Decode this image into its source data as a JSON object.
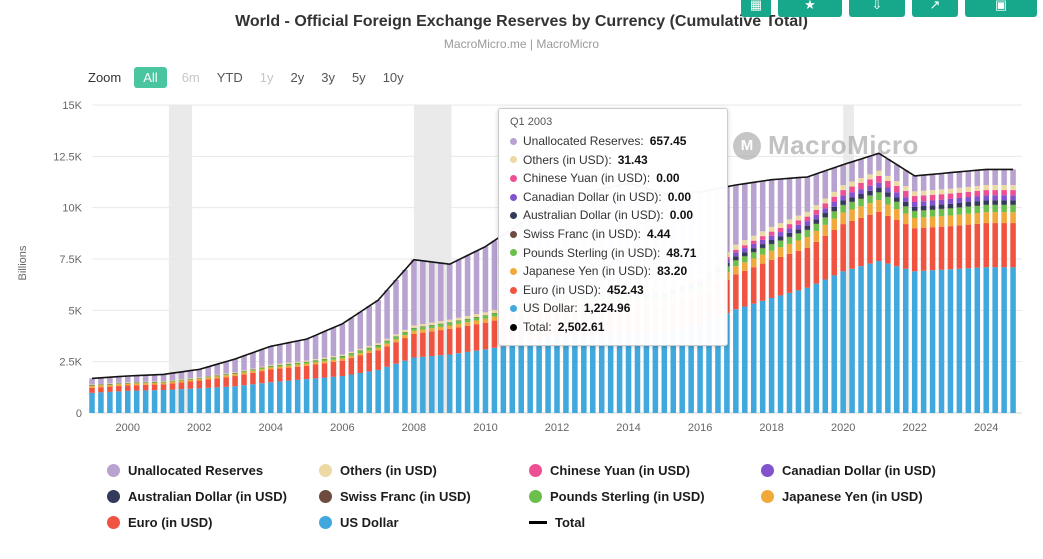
{
  "header": {
    "title": "World - Official Foreign Exchange Reserves by Currency (Cumulative Total)",
    "subtitle": "MacroMicro.me | MacroMicro"
  },
  "toolbar": {
    "zoom_label": "Zoom",
    "ranges": [
      {
        "label": "All",
        "state": "active"
      },
      {
        "label": "6m",
        "state": "muted"
      },
      {
        "label": "YTD",
        "state": "normal"
      },
      {
        "label": "1y",
        "state": "muted"
      },
      {
        "label": "2y",
        "state": "normal"
      },
      {
        "label": "3y",
        "state": "normal"
      },
      {
        "label": "5y",
        "state": "normal"
      },
      {
        "label": "10y",
        "state": "normal"
      }
    ],
    "icon_buttons": [
      {
        "id": "table-view",
        "glyph": "▦"
      },
      {
        "id": "favorite",
        "glyph": "★"
      },
      {
        "id": "download",
        "glyph": "⇩"
      },
      {
        "id": "share",
        "glyph": "↗"
      },
      {
        "id": "fullscreen",
        "glyph": "▣"
      }
    ]
  },
  "watermark": "MacroMicro",
  "tooltip": {
    "title": "Q1 2003",
    "rows": [
      {
        "label": "Unallocated Reserves",
        "value": "657.45",
        "color": "#b7a2d0"
      },
      {
        "label": "Others (in USD)",
        "value": "31.43",
        "color": "#ecd9a4"
      },
      {
        "label": "Chinese Yuan (in USD)",
        "value": "0.00",
        "color": "#ee4f92"
      },
      {
        "label": "Canadian Dollar (in USD)",
        "value": "0.00",
        "color": "#8153cc"
      },
      {
        "label": "Australian Dollar (in USD)",
        "value": "0.00",
        "color": "#333a5c"
      },
      {
        "label": "Swiss Franc (in USD)",
        "value": "4.44",
        "color": "#6e4b3f"
      },
      {
        "label": "Pounds Sterling (in USD)",
        "value": "48.71",
        "color": "#6cbf4d"
      },
      {
        "label": "Japanese Yen (in USD)",
        "value": "83.20",
        "color": "#f2a93b"
      },
      {
        "label": "Euro (in USD)",
        "value": "452.43",
        "color": "#f05340"
      },
      {
        "label": "US Dollar",
        "value": "1,224.96",
        "color": "#41a8dd"
      },
      {
        "label": "Total",
        "value": "2,502.61",
        "color": "#000000"
      }
    ]
  },
  "legend": {
    "items": [
      {
        "id": "unallocated-reserves",
        "label": "Unallocated Reserves",
        "color": "#b7a2d0",
        "type": "dot"
      },
      {
        "id": "others-usd",
        "label": "Others (in USD)",
        "color": "#ecd9a4",
        "type": "dot"
      },
      {
        "id": "chinese-yuan",
        "label": "Chinese Yuan (in USD)",
        "color": "#ee4f92",
        "type": "dot"
      },
      {
        "id": "canadian-dollar",
        "label": "Canadian Dollar (in USD)",
        "color": "#8153cc",
        "type": "dot"
      },
      {
        "id": "australian-dollar",
        "label": "Australian Dollar (in USD)",
        "color": "#333a5c",
        "type": "dot"
      },
      {
        "id": "swiss-franc",
        "label": "Swiss Franc (in USD)",
        "color": "#6e4b3f",
        "type": "dot"
      },
      {
        "id": "pounds-sterling",
        "label": "Pounds Sterling (in USD)",
        "color": "#6cbf4d",
        "type": "dot"
      },
      {
        "id": "japanese-yen",
        "label": "Japanese Yen (in USD)",
        "color": "#f2a93b",
        "type": "dot"
      },
      {
        "id": "euro",
        "label": "Euro (in USD)",
        "color": "#f05340",
        "type": "dot"
      },
      {
        "id": "us-dollar",
        "label": "US Dollar",
        "color": "#41a8dd",
        "type": "dot"
      },
      {
        "id": "total",
        "label": "Total",
        "color": "#000000",
        "type": "line"
      }
    ]
  },
  "chart_data": {
    "type": "bar",
    "stacked": true,
    "title": "World - Official Foreign Exchange Reserves by Currency (Cumulative Total)",
    "ylabel": "Billions",
    "ylim": [
      0,
      15000
    ],
    "x_domain": [
      1999,
      2025
    ],
    "bar_interval_years": 0.25,
    "grid": true,
    "legend_position": "bottom",
    "yticks": [
      {
        "v": 0,
        "label": "0"
      },
      {
        "v": 2500,
        "label": "2.5K"
      },
      {
        "v": 5000,
        "label": "5K"
      },
      {
        "v": 7500,
        "label": "7.5K"
      },
      {
        "v": 10000,
        "label": "10K"
      },
      {
        "v": 12500,
        "label": "12.5K"
      },
      {
        "v": 15000,
        "label": "15K"
      }
    ],
    "xticks": [
      {
        "v": 2000,
        "label": "2000"
      },
      {
        "v": 2002,
        "label": "2002"
      },
      {
        "v": 2004,
        "label": "2004"
      },
      {
        "v": 2006,
        "label": "2006"
      },
      {
        "v": 2008,
        "label": "2008"
      },
      {
        "v": 2010,
        "label": "2010"
      },
      {
        "v": 2012,
        "label": "2012"
      },
      {
        "v": 2014,
        "label": "2014"
      },
      {
        "v": 2016,
        "label": "2016"
      },
      {
        "v": 2018,
        "label": "2018"
      },
      {
        "v": 2020,
        "label": "2020"
      },
      {
        "v": 2022,
        "label": "2022"
      },
      {
        "v": 2024,
        "label": "2024"
      }
    ],
    "recession_bands": [
      [
        2001.15,
        2001.8
      ],
      [
        2008.0,
        2009.05
      ],
      [
        2020.0,
        2020.3
      ]
    ],
    "years": [
      1999,
      2000,
      2001,
      2002,
      2003,
      2004,
      2005,
      2006,
      2007,
      2008,
      2009,
      2010,
      2011,
      2012,
      2013,
      2014,
      2015,
      2016,
      2017,
      2018,
      2019,
      2020,
      2021,
      2022,
      2023,
      2024
    ],
    "series": [
      {
        "name": "US Dollar",
        "color": "#41a8dd",
        "values": [
          980,
          1080,
          1120,
          1200,
          1300,
          1500,
          1650,
          1800,
          2100,
          2700,
          2850,
          3100,
          3400,
          3700,
          3800,
          3850,
          3900,
          4300,
          5050,
          5600,
          6100,
          6900,
          7400,
          6900,
          7000,
          7100
        ]
      },
      {
        "name": "Euro (in USD)",
        "color": "#f05340",
        "values": [
          250,
          260,
          280,
          380,
          500,
          620,
          650,
          750,
          950,
          1150,
          1250,
          1300,
          1400,
          1450,
          1500,
          1400,
          1300,
          1400,
          1700,
          1850,
          1950,
          2300,
          2400,
          2100,
          2100,
          2150
        ]
      },
      {
        "name": "Japanese Yen (in USD)",
        "color": "#f2a93b",
        "values": [
          85,
          85,
          80,
          85,
          90,
          100,
          100,
          105,
          120,
          150,
          160,
          190,
          210,
          220,
          215,
          210,
          220,
          280,
          400,
          450,
          520,
          560,
          570,
          500,
          520,
          530
        ]
      },
      {
        "name": "Pounds Sterling (in USD)",
        "color": "#6cbf4d",
        "values": [
          40,
          40,
          40,
          45,
          50,
          75,
          90,
          120,
          140,
          140,
          150,
          160,
          170,
          180,
          190,
          210,
          220,
          240,
          290,
          320,
          340,
          360,
          370,
          330,
          340,
          350
        ]
      },
      {
        "name": "Swiss Franc (in USD)",
        "color": "#6e4b3f",
        "values": [
          4,
          4,
          4,
          5,
          5,
          5,
          5,
          5,
          5,
          7,
          7,
          8,
          8,
          8,
          8,
          8,
          9,
          10,
          12,
          14,
          15,
          17,
          17,
          16,
          16,
          17
        ]
      },
      {
        "name": "Australian Dollar (in USD)",
        "color": "#333a5c",
        "values": [
          0,
          0,
          0,
          0,
          0,
          0,
          0,
          0,
          0,
          0,
          0,
          0,
          0,
          90,
          100,
          105,
          105,
          110,
          180,
          190,
          200,
          215,
          220,
          200,
          210,
          215
        ]
      },
      {
        "name": "Canadian Dollar (in USD)",
        "color": "#8153cc",
        "values": [
          0,
          0,
          0,
          0,
          0,
          0,
          0,
          0,
          0,
          0,
          0,
          0,
          0,
          95,
          110,
          115,
          115,
          120,
          200,
          210,
          220,
          235,
          240,
          230,
          240,
          245
        ]
      },
      {
        "name": "Chinese Yuan (in USD)",
        "color": "#ee4f92",
        "values": [
          0,
          0,
          0,
          0,
          0,
          0,
          0,
          0,
          0,
          0,
          0,
          0,
          0,
          0,
          0,
          0,
          0,
          90,
          120,
          200,
          220,
          270,
          330,
          290,
          260,
          250
        ]
      },
      {
        "name": "Others (in USD)",
        "color": "#ecd9a4",
        "values": [
          25,
          25,
          28,
          30,
          35,
          50,
          55,
          65,
          80,
          120,
          130,
          145,
          180,
          200,
          190,
          200,
          210,
          220,
          250,
          230,
          230,
          240,
          250,
          230,
          240,
          245
        ]
      },
      {
        "name": "Unallocated Reserves",
        "color": "#b7a2d0",
        "values": [
          300,
          310,
          330,
          380,
          650,
          900,
          1050,
          1500,
          2100,
          3200,
          2700,
          3200,
          3900,
          4300,
          4700,
          5100,
          4600,
          4000,
          2900,
          2300,
          1700,
          1000,
          850,
          750,
          780,
          760
        ]
      }
    ],
    "total_line": {
      "name": "Total",
      "color": "#141414"
    }
  }
}
